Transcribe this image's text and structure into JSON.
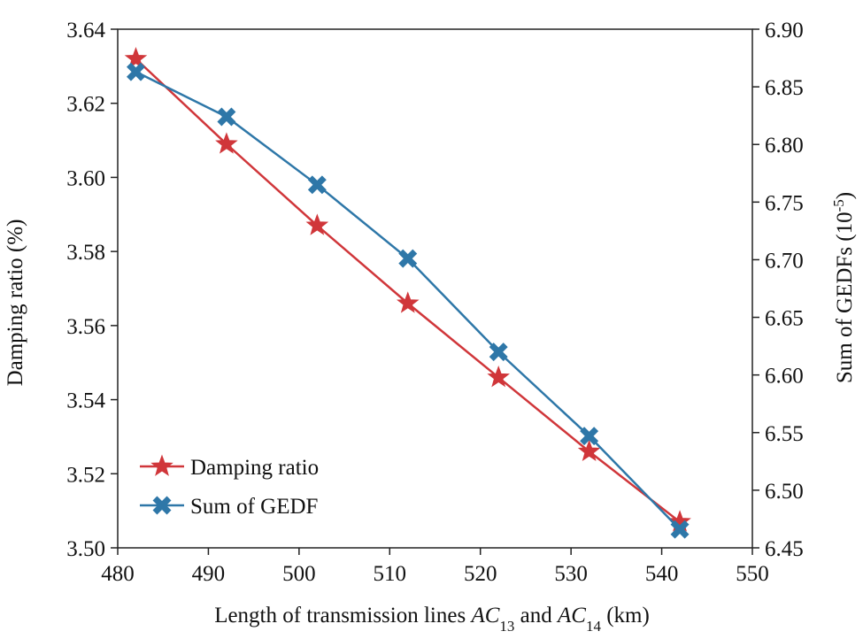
{
  "chart_data": {
    "type": "line",
    "x": [
      482,
      492,
      502,
      512,
      522,
      532,
      542
    ],
    "xlim": [
      480,
      550
    ],
    "x_ticks": [
      480,
      490,
      500,
      510,
      520,
      530,
      540,
      550
    ],
    "xlabel": {
      "prefix": "Length of transmission lines ",
      "var1": "AC",
      "sub1": "13",
      "mid": " and ",
      "var2": "AC",
      "sub2": "14",
      "suffix": " (km)"
    },
    "y_left": {
      "label": "Damping ratio (%)",
      "lim": [
        3.5,
        3.64
      ],
      "ticks": [
        "3.50",
        "3.52",
        "3.54",
        "3.56",
        "3.58",
        "3.60",
        "3.62",
        "3.64"
      ]
    },
    "y_right": {
      "label_prefix": "Sum of GEDFs (10",
      "label_sup": "-5",
      "label_suffix": ")",
      "lim": [
        6.45,
        6.9
      ],
      "ticks": [
        "6.45",
        "6.50",
        "6.55",
        "6.60",
        "6.65",
        "6.70",
        "6.75",
        "6.80",
        "6.85",
        "6.90"
      ]
    },
    "series": [
      {
        "name": "Damping ratio",
        "axis": "left",
        "marker": "star",
        "color": "#d0363a",
        "values": [
          3.632,
          3.609,
          3.587,
          3.566,
          3.546,
          3.526,
          3.507
        ]
      },
      {
        "name": "Sum of GEDF",
        "axis": "right",
        "marker": "x",
        "color": "#2e77a8",
        "values": [
          6.863,
          6.824,
          6.765,
          6.701,
          6.62,
          6.547,
          6.466
        ]
      }
    ],
    "legend_position": "bottom-left",
    "grid": false
  }
}
